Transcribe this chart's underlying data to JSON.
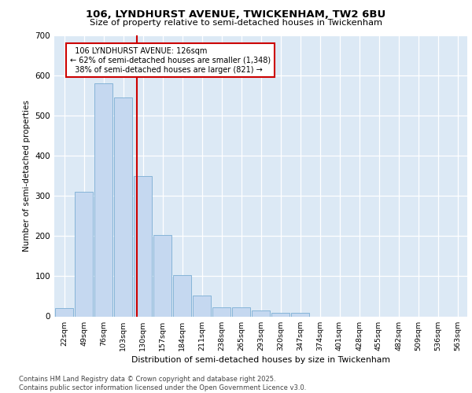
{
  "title1": "106, LYNDHURST AVENUE, TWICKENHAM, TW2 6BU",
  "title2": "Size of property relative to semi-detached houses in Twickenham",
  "xlabel": "Distribution of semi-detached houses by size in Twickenham",
  "ylabel": "Number of semi-detached properties",
  "bar_labels": [
    "22sqm",
    "49sqm",
    "76sqm",
    "103sqm",
    "130sqm",
    "157sqm",
    "184sqm",
    "211sqm",
    "238sqm",
    "265sqm",
    "293sqm",
    "320sqm",
    "347sqm",
    "374sqm",
    "401sqm",
    "428sqm",
    "455sqm",
    "482sqm",
    "509sqm",
    "536sqm",
    "563sqm"
  ],
  "bar_values": [
    20,
    310,
    580,
    545,
    350,
    202,
    103,
    52,
    23,
    22,
    15,
    8,
    8,
    0,
    0,
    0,
    0,
    0,
    0,
    0,
    0
  ],
  "bar_color": "#c5d8f0",
  "bar_edge_color": "#7aadd4",
  "property_line_label": "106 LYNDHURST AVENUE: 126sqm",
  "pct_smaller": "62%",
  "pct_smaller_n": "1,348",
  "pct_larger": "38%",
  "pct_larger_n": "821",
  "annotation_box_color": "#cc0000",
  "line_color": "#cc0000",
  "ylim": [
    0,
    700
  ],
  "yticks": [
    0,
    100,
    200,
    300,
    400,
    500,
    600,
    700
  ],
  "background_color": "#dce9f5",
  "footer_line1": "Contains HM Land Registry data © Crown copyright and database right 2025.",
  "footer_line2": "Contains public sector information licensed under the Open Government Licence v3.0."
}
